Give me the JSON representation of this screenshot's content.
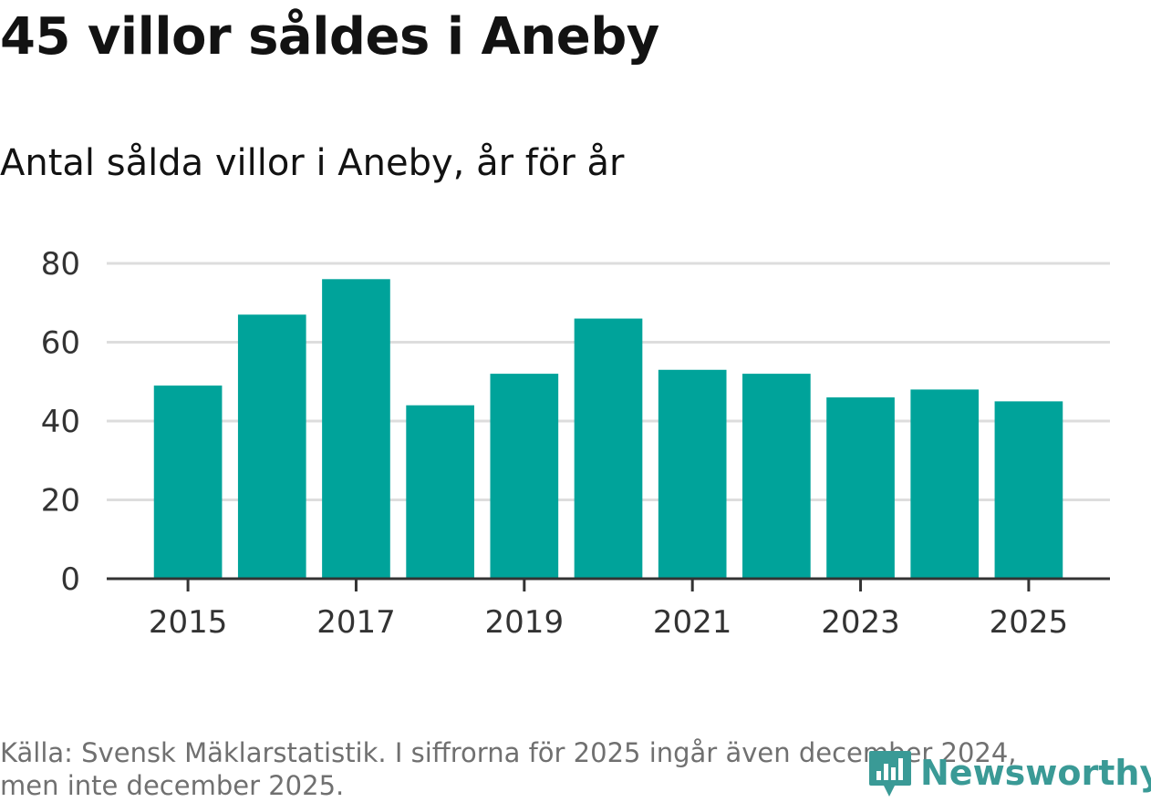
{
  "header": {
    "title": "45 villor såldes i Aneby",
    "subtitle": "Antal sålda villor i Aneby, år för år"
  },
  "footer": {
    "source_line1": "Källa: Svensk Mäklarstatistik. I siffrorna för 2025 ingår även december 2024,",
    "source_line2": "men inte december 2025.",
    "logo_text": "Newsworthy"
  },
  "colors": {
    "bar": "#00a39a",
    "grid": "#dddddd",
    "axis": "#333333",
    "tick_text": "#333333",
    "logo": "#3a9a96"
  },
  "chart_data": {
    "type": "bar",
    "title": "45 villor såldes i Aneby",
    "subtitle": "Antal sålda villor i Aneby, år för år",
    "xlabel": "",
    "ylabel": "",
    "categories": [
      "2015",
      "2016",
      "2017",
      "2018",
      "2019",
      "2020",
      "2021",
      "2022",
      "2023",
      "2024",
      "2025"
    ],
    "values": [
      49,
      67,
      76,
      44,
      52,
      66,
      53,
      52,
      46,
      48,
      45
    ],
    "x_tick_labels": [
      "2015",
      "2017",
      "2019",
      "2021",
      "2023",
      "2025"
    ],
    "y_ticks": [
      0,
      20,
      40,
      60,
      80
    ],
    "ylim": [
      0,
      80
    ],
    "grid": true
  }
}
